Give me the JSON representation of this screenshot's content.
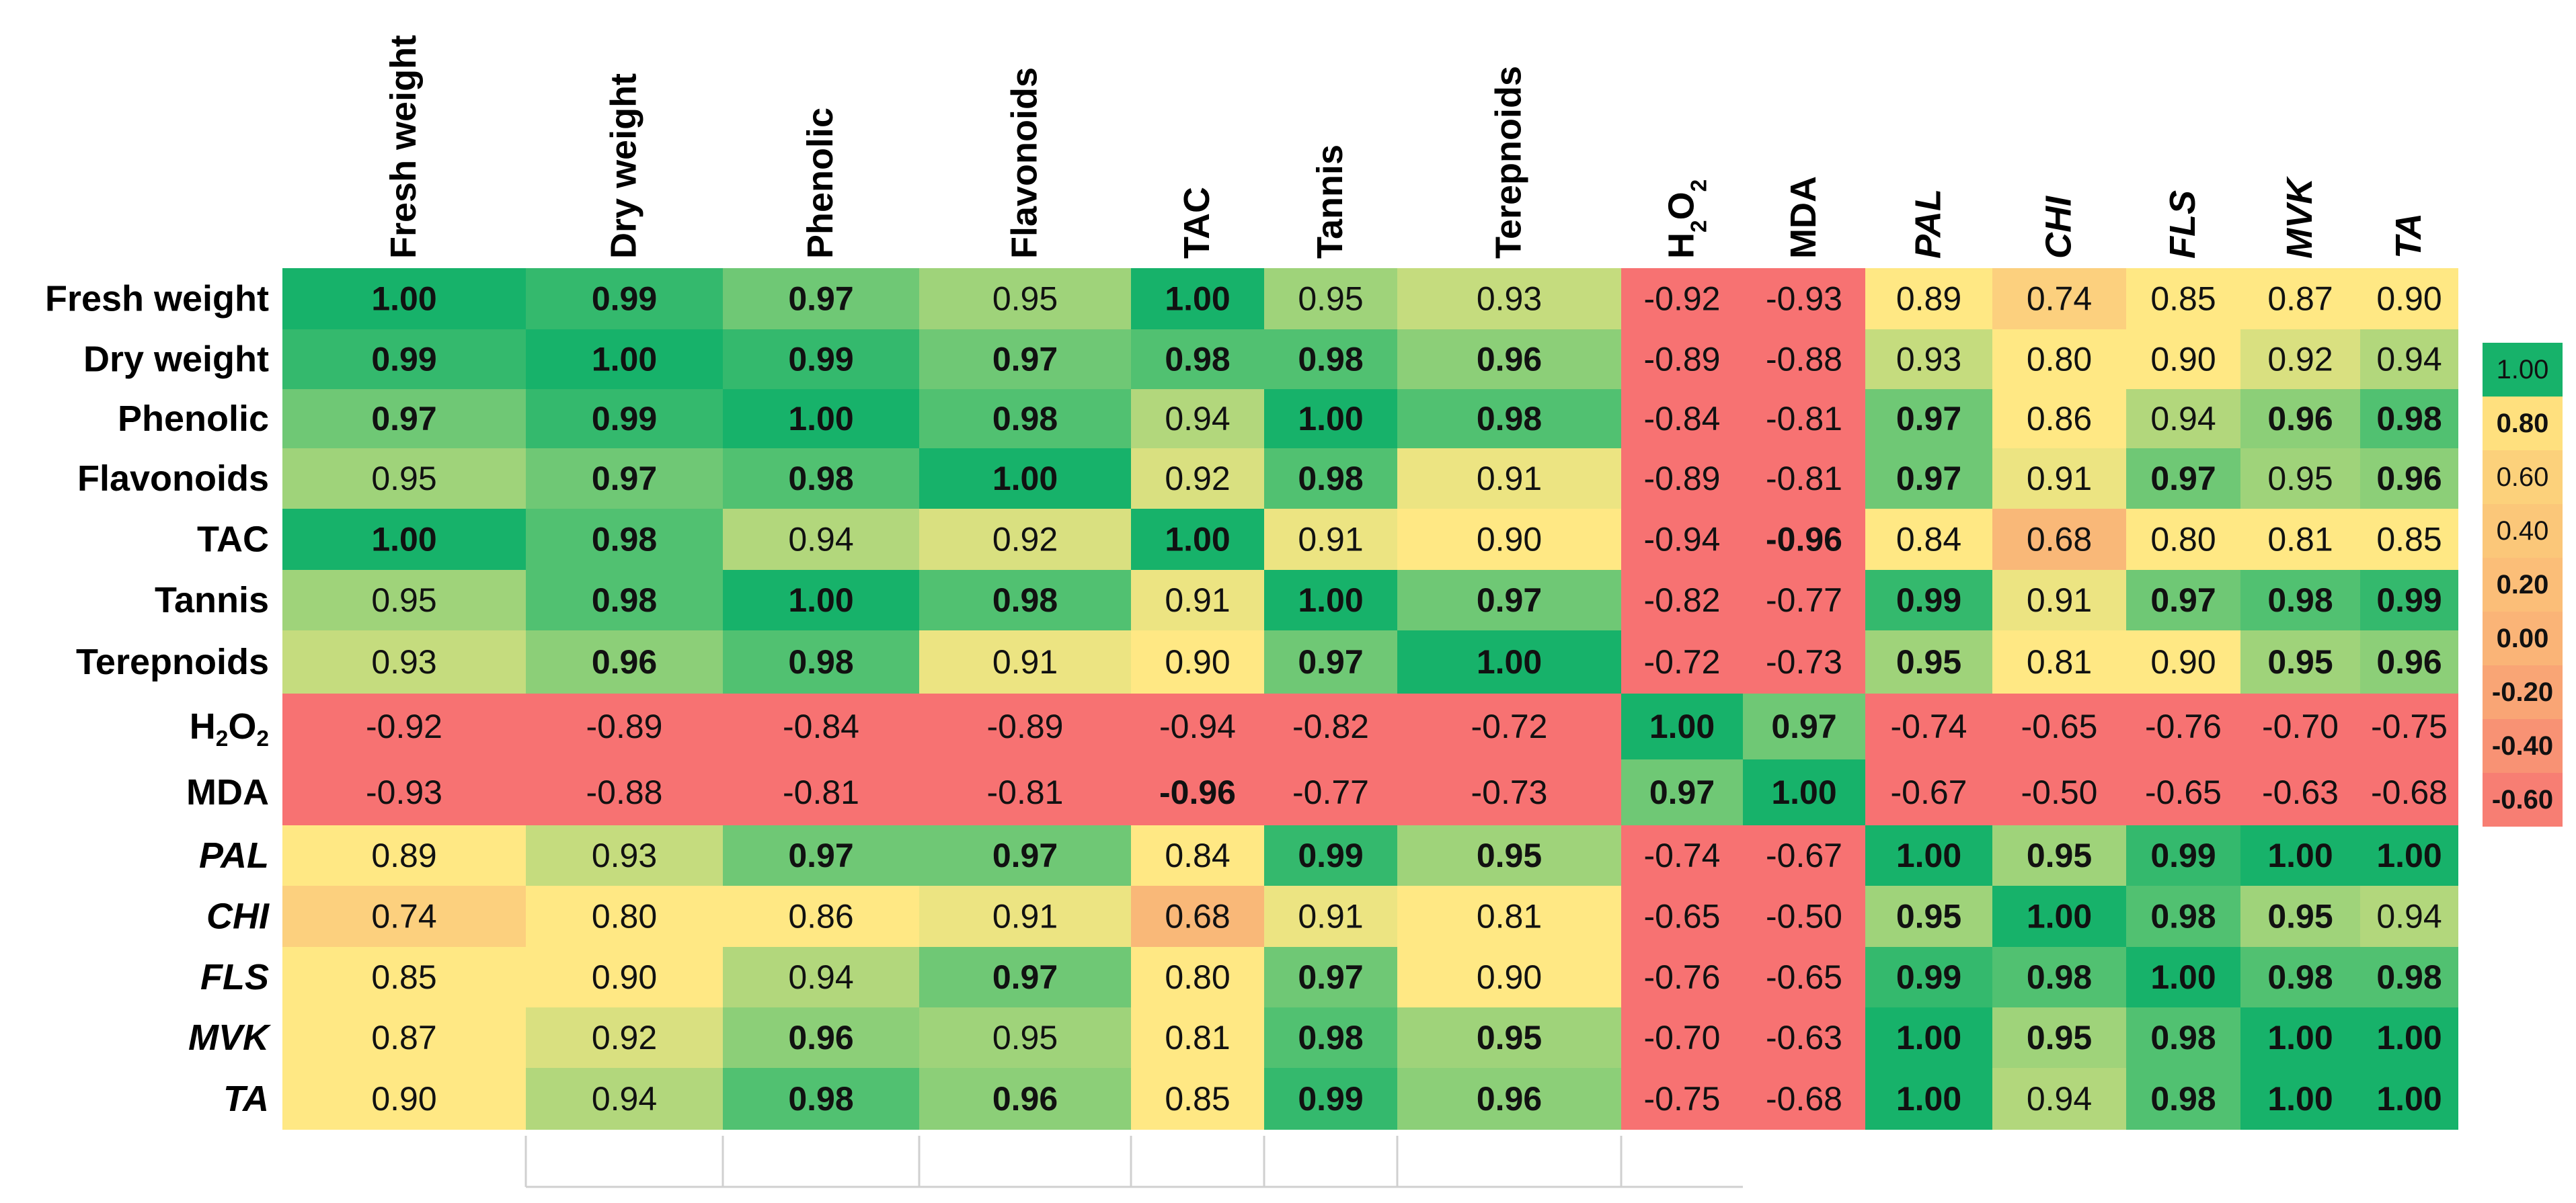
{
  "chart_data": {
    "type": "heatmap",
    "title": "",
    "columns": [
      {
        "label": "Fresh weight",
        "italic": false
      },
      {
        "label": "Dry weight",
        "italic": false
      },
      {
        "label": "Phenolic",
        "italic": false
      },
      {
        "label": "Flavonoids",
        "italic": false
      },
      {
        "label": "TAC",
        "italic": false
      },
      {
        "label": "Tannis",
        "italic": false
      },
      {
        "label": "Terepnoids",
        "italic": false
      },
      {
        "label": "H2O2",
        "italic": false,
        "formula": true
      },
      {
        "label": "MDA",
        "italic": false
      },
      {
        "label": "PAL",
        "italic": true
      },
      {
        "label": "CHI",
        "italic": true
      },
      {
        "label": "FLS",
        "italic": true
      },
      {
        "label": "MVK",
        "italic": true
      },
      {
        "label": "TA",
        "italic": true
      }
    ],
    "rows": [
      {
        "label": "Fresh weight",
        "italic": false
      },
      {
        "label": "Dry weight",
        "italic": false
      },
      {
        "label": "Phenolic",
        "italic": false
      },
      {
        "label": "Flavonoids",
        "italic": false
      },
      {
        "label": "TAC",
        "italic": false
      },
      {
        "label": "Tannis",
        "italic": false
      },
      {
        "label": "Terepnoids",
        "italic": false
      },
      {
        "label": "H2O2",
        "italic": false,
        "formula": true
      },
      {
        "label": "MDA",
        "italic": false
      },
      {
        "label": "PAL",
        "italic": true
      },
      {
        "label": "CHI",
        "italic": true
      },
      {
        "label": "FLS",
        "italic": true
      },
      {
        "label": "MVK",
        "italic": true
      },
      {
        "label": "TA",
        "italic": true
      }
    ],
    "values": [
      [
        "1.00",
        "0.99",
        "0.97",
        "0.95",
        "1.00",
        "0.95",
        "0.93",
        "-0.92",
        "-0.93",
        "0.89",
        "0.74",
        "0.85",
        "0.87",
        "0.90"
      ],
      [
        "0.99",
        "1.00",
        "0.99",
        "0.97",
        "0.98",
        "0.98",
        "0.96",
        "-0.89",
        "-0.88",
        "0.93",
        "0.80",
        "0.90",
        "0.92",
        "0.94"
      ],
      [
        "0.97",
        "0.99",
        "1.00",
        "0.98",
        "0.94",
        "1.00",
        "0.98",
        "-0.84",
        "-0.81",
        "0.97",
        "0.86",
        "0.94",
        "0.96",
        "0.98"
      ],
      [
        "0.95",
        "0.97",
        "0.98",
        "1.00",
        "0.92",
        "0.98",
        "0.91",
        "-0.89",
        "-0.81",
        "0.97",
        "0.91",
        "0.97",
        "0.95",
        "0.96"
      ],
      [
        "1.00",
        "0.98",
        "0.94",
        "0.92",
        "1.00",
        "0.91",
        "0.90",
        "-0.94",
        "-0.96",
        "0.84",
        "0.68",
        "0.80",
        "0.81",
        "0.85"
      ],
      [
        "0.95",
        "0.98",
        "1.00",
        "0.98",
        "0.91",
        "1.00",
        "0.97",
        "-0.82",
        "-0.77",
        "0.99",
        "0.91",
        "0.97",
        "0.98",
        "0.99"
      ],
      [
        "0.93",
        "0.96",
        "0.98",
        "0.91",
        "0.90",
        "0.97",
        "1.00",
        "-0.72",
        "-0.73",
        "0.95",
        "0.81",
        "0.90",
        "0.95",
        "0.96"
      ],
      [
        "-0.92",
        "-0.89",
        "-0.84",
        "-0.89",
        "-0.94",
        "-0.82",
        "-0.72",
        "1.00",
        "0.97",
        "-0.74",
        "-0.65",
        "-0.76",
        "-0.70",
        "-0.75"
      ],
      [
        "-0.93",
        "-0.88",
        "-0.81",
        "-0.81",
        "-0.96",
        "-0.77",
        "-0.73",
        "0.97",
        "1.00",
        "-0.67",
        "-0.50",
        "-0.65",
        "-0.63",
        "-0.68"
      ],
      [
        "0.89",
        "0.93",
        "0.97",
        "0.97",
        "0.84",
        "0.99",
        "0.95",
        "-0.74",
        "-0.67",
        "1.00",
        "0.95",
        "0.99",
        "1.00",
        "1.00"
      ],
      [
        "0.74",
        "0.80",
        "0.86",
        "0.91",
        "0.68",
        "0.91",
        "0.81",
        "-0.65",
        "-0.50",
        "0.95",
        "1.00",
        "0.98",
        "0.95",
        "0.94"
      ],
      [
        "0.85",
        "0.90",
        "0.94",
        "0.97",
        "0.80",
        "0.97",
        "0.90",
        "-0.76",
        "-0.65",
        "0.99",
        "0.98",
        "1.00",
        "0.98",
        "0.98"
      ],
      [
        "0.87",
        "0.92",
        "0.96",
        "0.95",
        "0.81",
        "0.98",
        "0.95",
        "-0.70",
        "-0.63",
        "1.00",
        "0.95",
        "0.98",
        "1.00",
        "1.00"
      ],
      [
        "0.90",
        "0.94",
        "0.98",
        "0.96",
        "0.85",
        "0.99",
        "0.96",
        "-0.75",
        "-0.68",
        "1.00",
        "0.94",
        "0.98",
        "1.00",
        "1.00"
      ]
    ],
    "bold": [
      [
        1,
        1,
        1,
        0,
        1,
        0,
        0,
        0,
        0,
        0,
        0,
        0,
        0,
        0
      ],
      [
        1,
        1,
        1,
        1,
        1,
        1,
        1,
        0,
        0,
        0,
        0,
        0,
        0,
        0
      ],
      [
        1,
        1,
        1,
        1,
        0,
        1,
        1,
        0,
        0,
        1,
        0,
        0,
        1,
        1
      ],
      [
        0,
        1,
        1,
        1,
        0,
        1,
        0,
        0,
        0,
        1,
        0,
        1,
        0,
        1
      ],
      [
        1,
        1,
        0,
        0,
        1,
        0,
        0,
        0,
        1,
        0,
        0,
        0,
        0,
        0
      ],
      [
        0,
        1,
        1,
        1,
        0,
        1,
        1,
        0,
        0,
        1,
        0,
        1,
        1,
        1
      ],
      [
        0,
        1,
        1,
        0,
        0,
        1,
        1,
        0,
        0,
        1,
        0,
        0,
        1,
        1
      ],
      [
        0,
        0,
        0,
        0,
        0,
        0,
        0,
        1,
        1,
        0,
        0,
        0,
        0,
        0
      ],
      [
        0,
        0,
        0,
        0,
        1,
        0,
        0,
        1,
        1,
        0,
        0,
        0,
        0,
        0
      ],
      [
        0,
        0,
        1,
        1,
        0,
        1,
        1,
        0,
        0,
        1,
        1,
        1,
        1,
        1
      ],
      [
        0,
        0,
        0,
        0,
        0,
        0,
        0,
        0,
        0,
        1,
        1,
        1,
        1,
        0
      ],
      [
        0,
        0,
        0,
        1,
        0,
        1,
        0,
        0,
        0,
        1,
        1,
        1,
        1,
        1
      ],
      [
        0,
        0,
        1,
        0,
        0,
        1,
        1,
        0,
        0,
        1,
        1,
        1,
        1,
        1
      ],
      [
        0,
        0,
        1,
        1,
        0,
        1,
        1,
        0,
        0,
        1,
        0,
        1,
        1,
        1
      ]
    ],
    "legend": {
      "labels": [
        "1.00",
        "0.80",
        "0.60",
        "0.40",
        "0.20",
        "0.00",
        "-0.20",
        "-0.40",
        "-0.60"
      ],
      "bold": [
        false,
        true,
        false,
        false,
        true,
        true,
        true,
        true,
        true
      ]
    },
    "colors": {
      "high_green": "#17b26a",
      "mid_green": "#8ccf78",
      "yellow": "#ffe884",
      "orange": "#f9b878",
      "low_red": "#f77272"
    }
  }
}
